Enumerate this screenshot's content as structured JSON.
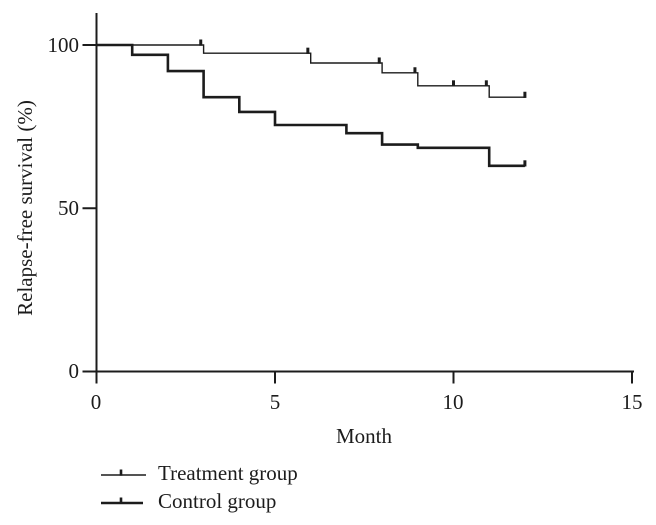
{
  "figure": {
    "background": "#ffffff",
    "line_color": "#1c1c1c"
  },
  "chart_data": {
    "type": "line",
    "subtype": "kaplan-meier-step-survival",
    "title": "",
    "xlabel": "Month",
    "ylabel": "Relapse-free survival (%)",
    "xlim": [
      0,
      15
    ],
    "ylim": [
      0,
      100
    ],
    "grid": false,
    "x_ticks": [
      0,
      5,
      10,
      15
    ],
    "y_ticks": [
      0,
      50,
      100
    ],
    "x_tick_labels": [
      "0",
      "5",
      "10",
      "15"
    ],
    "y_tick_labels": [
      "0",
      "50",
      "100"
    ],
    "legend_position": "below-plot-left",
    "series": [
      {
        "name": "Treatment group",
        "color": "#1c1c1c",
        "stroke_width": 1.4,
        "points": [
          [
            0,
            100
          ],
          [
            3,
            100
          ],
          [
            3,
            97.5
          ],
          [
            6,
            97.5
          ],
          [
            6,
            94.5
          ],
          [
            8,
            94.5
          ],
          [
            8,
            91.5
          ],
          [
            9,
            91.5
          ],
          [
            9,
            87.5
          ],
          [
            11,
            87.5
          ],
          [
            11,
            84
          ],
          [
            12,
            84
          ]
        ],
        "censor_marks": [
          [
            2.92,
            100
          ],
          [
            5.92,
            97.5
          ],
          [
            7.92,
            94.5
          ],
          [
            8.92,
            91.5
          ],
          [
            10,
            87.5
          ],
          [
            10.92,
            87.5
          ],
          [
            12,
            84
          ]
        ]
      },
      {
        "name": "Control group",
        "color": "#1c1c1c",
        "stroke_width": 2.6,
        "points": [
          [
            0,
            100
          ],
          [
            1,
            100
          ],
          [
            1,
            97
          ],
          [
            2,
            97
          ],
          [
            2,
            92
          ],
          [
            3,
            92
          ],
          [
            3,
            84
          ],
          [
            4,
            84
          ],
          [
            4,
            79.5
          ],
          [
            5,
            79.5
          ],
          [
            5,
            75.5
          ],
          [
            7,
            75.5
          ],
          [
            7,
            73
          ],
          [
            8,
            73
          ],
          [
            8,
            69.5
          ],
          [
            9,
            69.5
          ],
          [
            9,
            68.5
          ],
          [
            11,
            68.5
          ],
          [
            11,
            63
          ],
          [
            12,
            63
          ]
        ],
        "censor_marks": [
          [
            12,
            63
          ]
        ]
      }
    ]
  },
  "legend": {
    "items": [
      {
        "label": "Treatment group"
      },
      {
        "label": "Control group"
      }
    ]
  }
}
